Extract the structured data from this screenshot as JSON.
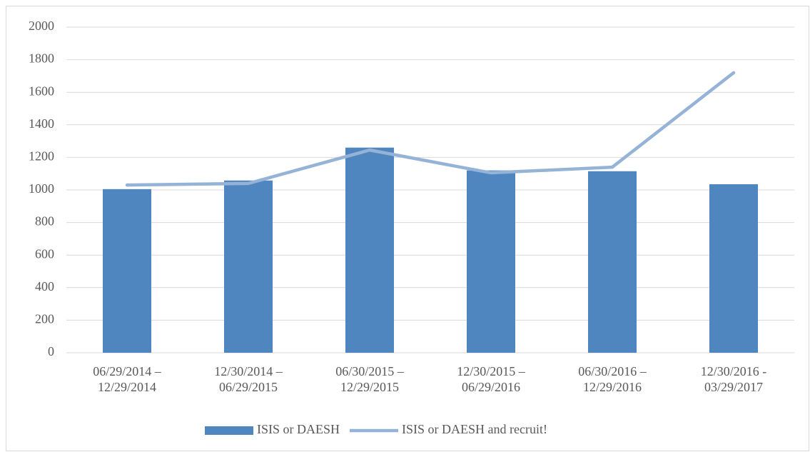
{
  "chart_data": {
    "type": "bar_line",
    "categories": [
      "06/29/2014 – 12/29/2014",
      "12/30/2014 – 06/29/2015",
      "06/30/2015 – 12/29/2015",
      "12/30/2015 – 06/29/2016",
      "06/30/2016 – 12/29/2016",
      "12/30/2016 - 03/29/2017"
    ],
    "series": [
      {
        "name": "ISIS or DAESH",
        "type": "bar",
        "color": "#4f86bf",
        "values": [
          1005,
          1058,
          1260,
          1120,
          1115,
          1035
        ]
      },
      {
        "name": "ISIS or DAESH and recruit!",
        "type": "line",
        "color": "#95b3d7",
        "values": [
          1030,
          1040,
          1245,
          1105,
          1140,
          1720
        ]
      }
    ],
    "ylim": [
      0,
      2000
    ],
    "yticks": [
      0,
      200,
      400,
      600,
      800,
      1000,
      1200,
      1400,
      1600,
      1800,
      2000
    ],
    "grid": true,
    "legend": "bottom"
  }
}
